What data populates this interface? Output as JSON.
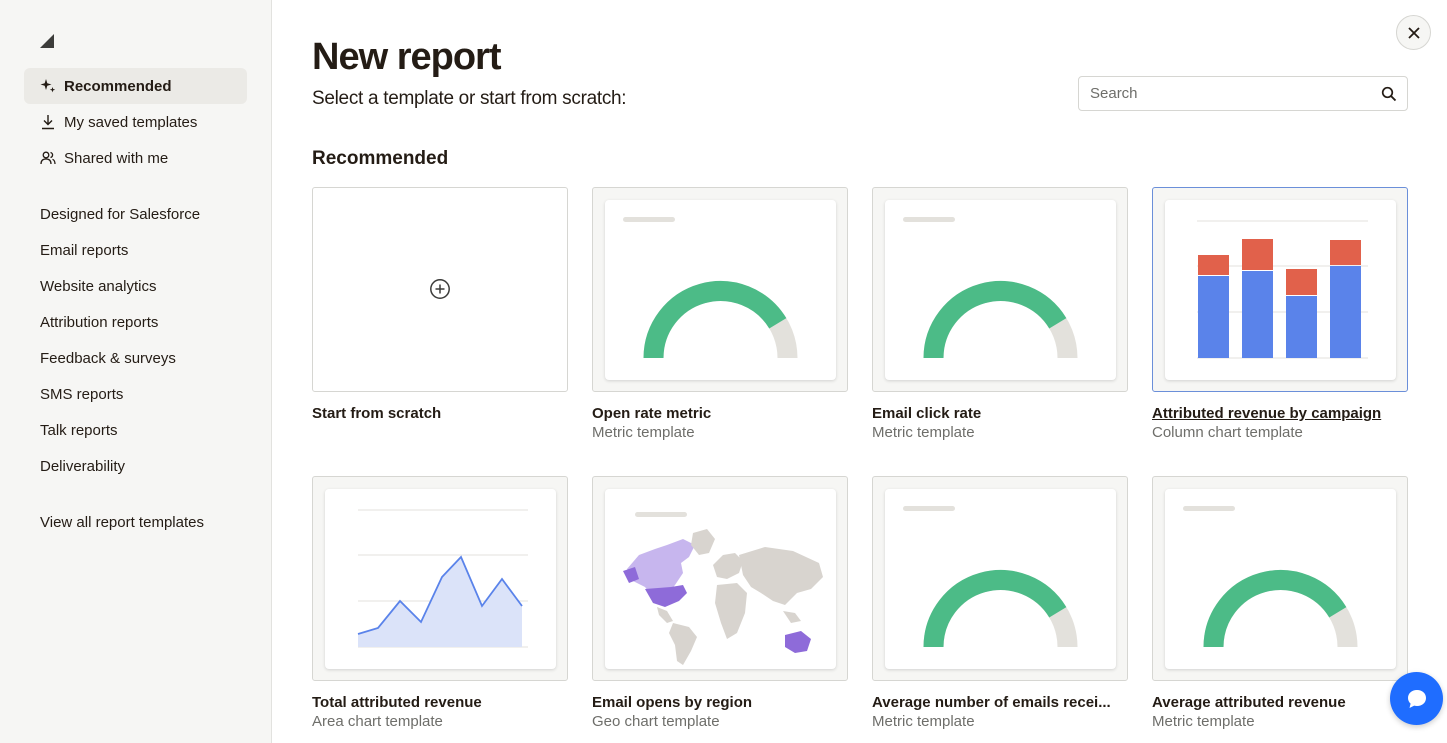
{
  "sidebar": {
    "top_items": [
      {
        "label": "Recommended",
        "icon": "sparkle-icon",
        "active": true
      },
      {
        "label": "My saved templates",
        "icon": "download-icon"
      },
      {
        "label": "Shared with me",
        "icon": "users-icon"
      }
    ],
    "categories": [
      {
        "label": "Designed for Salesforce"
      },
      {
        "label": "Email reports"
      },
      {
        "label": "Website analytics"
      },
      {
        "label": "Attribution reports"
      },
      {
        "label": "Feedback & surveys"
      },
      {
        "label": "SMS reports"
      },
      {
        "label": "Talk reports"
      },
      {
        "label": "Deliverability"
      }
    ],
    "view_all": "View all report templates"
  },
  "header": {
    "title": "New report",
    "subtitle": "Select a template or start from scratch:"
  },
  "search": {
    "placeholder": "Search",
    "value": ""
  },
  "section": {
    "title": "Recommended"
  },
  "cards": [
    {
      "name": "Start from scratch",
      "kind": ""
    },
    {
      "name": "Open rate metric",
      "kind": "Metric template"
    },
    {
      "name": "Email click rate",
      "kind": "Metric template"
    },
    {
      "name": "Attributed revenue by campaign",
      "kind": "Column chart template"
    },
    {
      "name": "Total attributed revenue",
      "kind": "Area chart template"
    },
    {
      "name": "Email opens by region",
      "kind": "Geo chart template"
    },
    {
      "name": "Average number of emails recei...",
      "kind": "Metric template"
    },
    {
      "name": "Average attributed revenue",
      "kind": "Metric template"
    }
  ],
  "colors": {
    "gauge_fill": "#4cbb87",
    "gauge_track": "#e3e1dc",
    "bar_base": "#5a83ea",
    "bar_top": "#e1614b",
    "area_line": "#5a83ea",
    "area_fill": "#dbe3f9",
    "map_land": "#d8d4cf",
    "map_highlight": "#8e6bd9",
    "chat_button": "#1f6dff"
  }
}
